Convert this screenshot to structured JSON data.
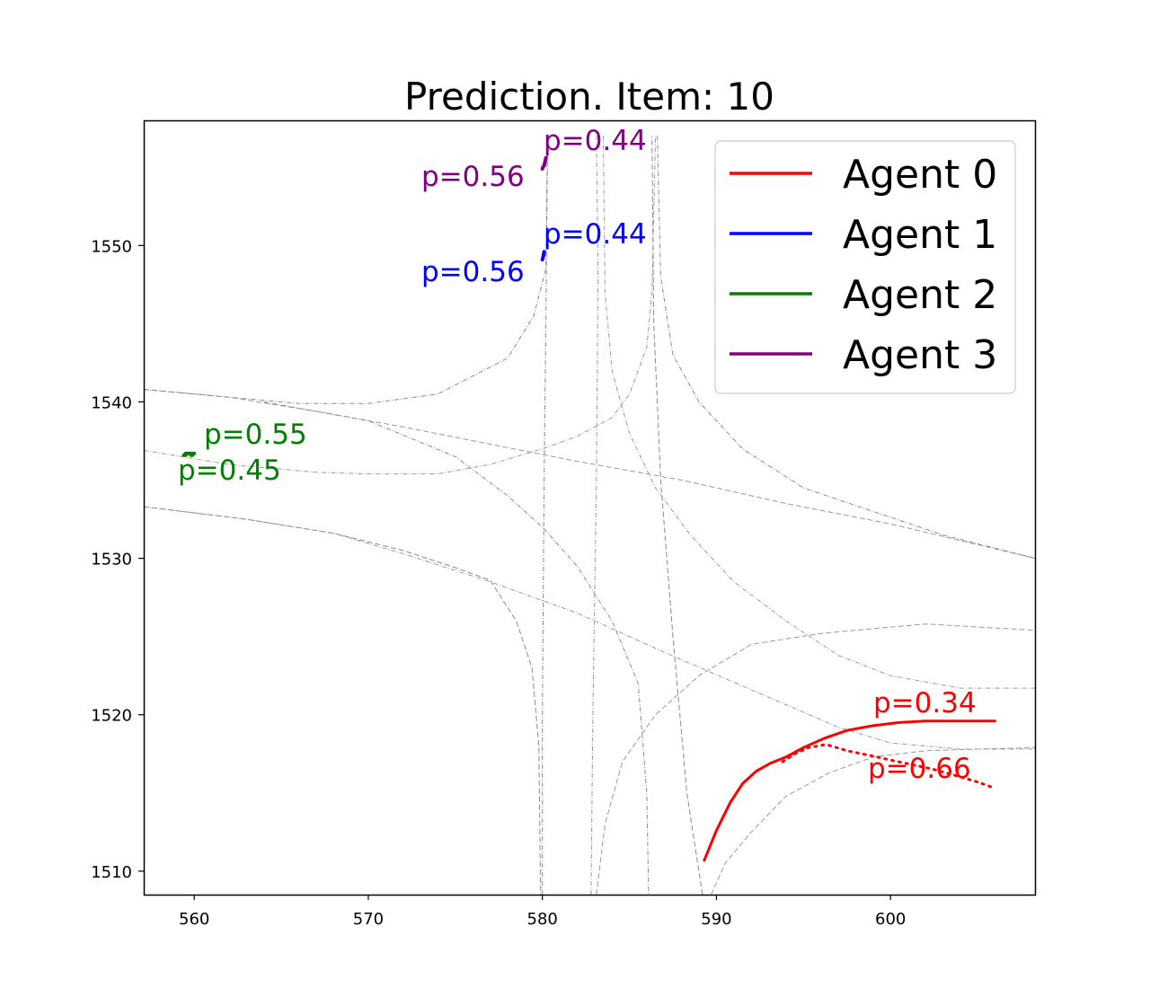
{
  "chart_data": {
    "type": "line",
    "title": "Prediction. Item: 10",
    "xlabel": "",
    "ylabel": "",
    "xlim": [
      557.1,
      608.3
    ],
    "ylim": [
      1508.5,
      1558.0
    ],
    "xticks": [
      560,
      570,
      580,
      590,
      600
    ],
    "yticks": [
      1510,
      1520,
      1530,
      1540,
      1550
    ],
    "grid": false,
    "legend_position": "top-right",
    "series": [
      {
        "name": "Agent 0",
        "color": "#ff0000",
        "modes": [
          {
            "probability_label": "p=0.34",
            "line_style": "solid",
            "points": [
              [
                589.3,
                1510.7
              ],
              [
                590.0,
                1512.6
              ],
              [
                590.8,
                1514.4
              ],
              [
                591.5,
                1515.6
              ],
              [
                592.3,
                1516.4
              ],
              [
                593.1,
                1516.9
              ],
              [
                594.0,
                1517.3
              ],
              [
                595.0,
                1517.9
              ],
              [
                596.2,
                1518.5
              ],
              [
                597.5,
                1519.0
              ],
              [
                599.0,
                1519.3
              ],
              [
                600.5,
                1519.5
              ],
              [
                602.0,
                1519.6
              ],
              [
                603.5,
                1519.6
              ],
              [
                605.0,
                1519.6
              ],
              [
                606.0,
                1519.6
              ]
            ]
          },
          {
            "probability_label": "p=0.66",
            "line_style": "dotted",
            "points": [
              [
                593.8,
                1517.0
              ],
              [
                594.5,
                1517.5
              ],
              [
                595.3,
                1517.9
              ],
              [
                596.3,
                1518.1
              ],
              [
                597.5,
                1517.7
              ],
              [
                598.8,
                1517.4
              ],
              [
                600.0,
                1517.1
              ],
              [
                601.3,
                1516.8
              ],
              [
                602.5,
                1516.5
              ],
              [
                603.8,
                1516.1
              ],
              [
                605.0,
                1515.7
              ],
              [
                606.0,
                1515.3
              ]
            ]
          }
        ]
      },
      {
        "name": "Agent 1",
        "color": "#0000ff",
        "modes": [
          {
            "probability_label": "p=0.44",
            "line_style": "solid",
            "points": [
              [
                580.05,
                1549.3
              ],
              [
                580.1,
                1549.6
              ]
            ]
          },
          {
            "probability_label": "p=0.56",
            "line_style": "dotted",
            "points": [
              [
                580.0,
                1549.1
              ],
              [
                580.05,
                1549.3
              ]
            ]
          }
        ]
      },
      {
        "name": "Agent 2",
        "color": "#008000",
        "modes": [
          {
            "probability_label": "p=0.55",
            "line_style": "solid",
            "points": [
              [
                559.5,
                1536.7
              ],
              [
                560.0,
                1536.7
              ]
            ]
          },
          {
            "probability_label": "p=0.45",
            "line_style": "dotted",
            "points": [
              [
                559.4,
                1536.6
              ],
              [
                559.9,
                1536.6
              ]
            ]
          }
        ]
      },
      {
        "name": "Agent 3",
        "color": "#800080",
        "modes": [
          {
            "probability_label": "p=0.44",
            "line_style": "solid",
            "points": [
              [
                580.1,
                1555.1
              ],
              [
                580.2,
                1555.6
              ]
            ]
          },
          {
            "probability_label": "p=0.56",
            "line_style": "dotted",
            "points": [
              [
                580.0,
                1554.9
              ],
              [
                580.1,
                1555.2
              ]
            ]
          }
        ]
      }
    ],
    "map_lanes": [
      [
        [
          557.1,
          1540.8
        ],
        [
          562,
          1540.3
        ],
        [
          567,
          1539.4
        ],
        [
          572,
          1538.4
        ],
        [
          577,
          1537.3
        ],
        [
          582,
          1536.2
        ],
        [
          588,
          1535.0
        ],
        [
          594,
          1533.5
        ],
        [
          600,
          1532.2
        ],
        [
          608.3,
          1530.0
        ]
      ],
      [
        [
          557.1,
          1540.8
        ],
        [
          562,
          1540.3
        ],
        [
          566,
          1539.9
        ],
        [
          570,
          1539.9
        ],
        [
          574,
          1540.5
        ],
        [
          578,
          1542.8
        ],
        [
          579.5,
          1545.5
        ],
        [
          580.2,
          1548.5
        ],
        [
          580.3,
          1557.0
        ]
      ],
      [
        [
          557.1,
          1536.9
        ],
        [
          562,
          1536.0
        ],
        [
          567,
          1535.5
        ],
        [
          570,
          1535.4
        ],
        [
          574,
          1535.4
        ],
        [
          577,
          1536.0
        ],
        [
          580,
          1537.0
        ],
        [
          582,
          1537.8
        ],
        [
          584,
          1539.0
        ],
        [
          585,
          1540.5
        ],
        [
          586,
          1543.5
        ],
        [
          586.3,
          1547.0
        ],
        [
          586.5,
          1557.0
        ]
      ],
      [
        [
          557.1,
          1533.3
        ],
        [
          563,
          1532.5
        ],
        [
          568,
          1531.6
        ],
        [
          572,
          1530.5
        ],
        [
          575,
          1529.4
        ],
        [
          577,
          1528.6
        ],
        [
          578.5,
          1526.0
        ],
        [
          579.4,
          1523.0
        ],
        [
          579.8,
          1518.0
        ],
        [
          579.9,
          1508.5
        ]
      ],
      [
        [
          557.1,
          1533.3
        ],
        [
          563,
          1532.5
        ],
        [
          568,
          1531.6
        ],
        [
          572,
          1530.3
        ],
        [
          577,
          1528.5
        ],
        [
          582,
          1526.5
        ],
        [
          587,
          1524.0
        ],
        [
          592,
          1521.6
        ],
        [
          597,
          1519.2
        ],
        [
          600,
          1518.2
        ],
        [
          604,
          1517.8
        ],
        [
          608.3,
          1517.8
        ]
      ],
      [
        [
          564,
          1540.0
        ],
        [
          570,
          1538.8
        ],
        [
          575,
          1536.5
        ],
        [
          578,
          1534.0
        ],
        [
          580,
          1532.0
        ],
        [
          582,
          1529.5
        ],
        [
          584,
          1526.0
        ],
        [
          585.5,
          1522.0
        ],
        [
          586.0,
          1515.0
        ],
        [
          586.1,
          1508.5
        ]
      ],
      [
        [
          583.1,
          1508.5
        ],
        [
          583.6,
          1513.0
        ],
        [
          584.6,
          1517.0
        ],
        [
          586.5,
          1520.0
        ],
        [
          589,
          1522.5
        ],
        [
          592,
          1524.5
        ],
        [
          596,
          1525.2
        ],
        [
          602,
          1525.8
        ],
        [
          608.3,
          1525.4
        ]
      ],
      [
        [
          580.0,
          1508.5
        ],
        [
          580.0,
          1520.0
        ],
        [
          580.1,
          1535.0
        ],
        [
          580.2,
          1545.0
        ],
        [
          580.3,
          1557.0
        ]
      ],
      [
        [
          582.8,
          1508.5
        ],
        [
          582.9,
          1520.0
        ],
        [
          583.1,
          1535.0
        ],
        [
          583.2,
          1548.0
        ],
        [
          583.1,
          1557.0
        ]
      ],
      [
        [
          589.2,
          1508.5
        ],
        [
          588.3,
          1515.0
        ],
        [
          587.5,
          1525.0
        ],
        [
          586.8,
          1535.0
        ],
        [
          586.4,
          1545.0
        ],
        [
          586.3,
          1557.0
        ]
      ],
      [
        [
          583.5,
          1557.0
        ],
        [
          583.6,
          1547.0
        ],
        [
          584.0,
          1542.0
        ],
        [
          585.0,
          1538.0
        ],
        [
          586.5,
          1534.5
        ],
        [
          588.5,
          1531.5
        ],
        [
          591.0,
          1528.5
        ],
        [
          594.0,
          1526.0
        ],
        [
          597.0,
          1523.8
        ],
        [
          600.0,
          1522.5
        ],
        [
          604.0,
          1521.7
        ],
        [
          608.3,
          1521.7
        ]
      ],
      [
        [
          586.6,
          1557.0
        ],
        [
          586.8,
          1548.0
        ],
        [
          587.5,
          1543.0
        ],
        [
          589.0,
          1540.0
        ],
        [
          591.5,
          1537.0
        ],
        [
          595.0,
          1534.5
        ],
        [
          599.0,
          1533.0
        ],
        [
          603.0,
          1531.5
        ],
        [
          608.3,
          1530.0
        ]
      ],
      [
        [
          589.7,
          1508.5
        ],
        [
          590.5,
          1510.5
        ],
        [
          592.0,
          1512.5
        ],
        [
          594.0,
          1514.8
        ],
        [
          596.5,
          1516.3
        ],
        [
          599.0,
          1517.3
        ],
        [
          602.0,
          1517.7
        ],
        [
          605.0,
          1517.8
        ],
        [
          608.3,
          1517.9
        ]
      ]
    ]
  }
}
